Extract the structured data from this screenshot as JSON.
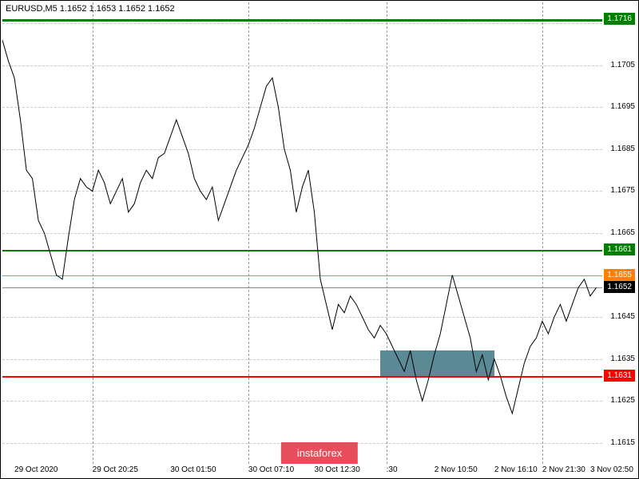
{
  "chart": {
    "symbol": "EURUSD",
    "timeframe": "M5",
    "ohlc": {
      "open": "1.1652",
      "high": "1.1653",
      "low": "1.1652",
      "close": "1.1652"
    },
    "title_fontsize": 11,
    "background_color": "#ffffff",
    "grid_color": "#cccccc",
    "grid_vertical_color": "#999999",
    "ylim": [
      1.161,
      1.172
    ],
    "yticks": [
      1.1615,
      1.1625,
      1.1635,
      1.1645,
      1.1655,
      1.1665,
      1.1675,
      1.1685,
      1.1695,
      1.1705,
      1.1715
    ],
    "xlim": [
      0,
      100
    ],
    "xticks": [
      {
        "pos": 2,
        "label": "29 Oct 2020"
      },
      {
        "pos": 15,
        "label": "29 Oct 20:25"
      },
      {
        "pos": 28,
        "label": "30 Oct 01:50"
      },
      {
        "pos": 41,
        "label": "30 Oct 07:10"
      },
      {
        "pos": 52,
        "label": "30 Oct 12:30"
      },
      {
        "pos": 64,
        "label": ":30"
      },
      {
        "pos": 72,
        "label": "2 Nov 10:50"
      },
      {
        "pos": 82,
        "label": "2 Nov 16:10"
      },
      {
        "pos": 90,
        "label": "2 Nov 21:30"
      },
      {
        "pos": 98,
        "label": "3 Nov 02:50"
      }
    ],
    "vertical_lines": [
      15,
      41,
      64,
      90
    ],
    "levels": [
      {
        "value": 1.1716,
        "color": "#008000",
        "width": 3,
        "label": "1.1716",
        "label_bg": "#008000"
      },
      {
        "value": 1.1661,
        "color": "#008000",
        "width": 2,
        "label": "1.1661",
        "label_bg": "#008000"
      },
      {
        "value": 1.1655,
        "color": "#ff8000",
        "width": 1,
        "label": "1.1655",
        "label_bg": "#ff8000"
      },
      {
        "value": 1.1631,
        "color": "#ff0000",
        "width": 2,
        "label": "1.1631",
        "label_bg": "#ff0000"
      }
    ],
    "current_price": {
      "value": 1.1652,
      "label": "1.1652",
      "line_color": "#888888",
      "label_bg": "#000000"
    },
    "highlight_box": {
      "x_start": 63,
      "x_end": 82,
      "y_start": 1.1631,
      "y_end": 1.1637,
      "color": "#5a8a95"
    },
    "watermark": {
      "text": "instaforex",
      "bg": "#e84d5b",
      "color": "#ffffff"
    },
    "price_data": [
      [
        0,
        1.1711
      ],
      [
        1,
        1.1706
      ],
      [
        2,
        1.1702
      ],
      [
        3,
        1.1692
      ],
      [
        4,
        1.168
      ],
      [
        5,
        1.1678
      ],
      [
        6,
        1.1668
      ],
      [
        7,
        1.1665
      ],
      [
        8,
        1.166
      ],
      [
        9,
        1.1655
      ],
      [
        10,
        1.1654
      ],
      [
        11,
        1.1664
      ],
      [
        12,
        1.1673
      ],
      [
        13,
        1.1678
      ],
      [
        14,
        1.1676
      ],
      [
        15,
        1.1675
      ],
      [
        16,
        1.168
      ],
      [
        17,
        1.1677
      ],
      [
        18,
        1.1672
      ],
      [
        19,
        1.1675
      ],
      [
        20,
        1.1678
      ],
      [
        21,
        1.167
      ],
      [
        22,
        1.1672
      ],
      [
        23,
        1.1677
      ],
      [
        24,
        1.168
      ],
      [
        25,
        1.1678
      ],
      [
        26,
        1.1683
      ],
      [
        27,
        1.1684
      ],
      [
        28,
        1.1688
      ],
      [
        29,
        1.1692
      ],
      [
        30,
        1.1688
      ],
      [
        31,
        1.1684
      ],
      [
        32,
        1.1678
      ],
      [
        33,
        1.1675
      ],
      [
        34,
        1.1673
      ],
      [
        35,
        1.1676
      ],
      [
        36,
        1.1668
      ],
      [
        37,
        1.1672
      ],
      [
        38,
        1.1676
      ],
      [
        39,
        1.168
      ],
      [
        40,
        1.1683
      ],
      [
        41,
        1.1686
      ],
      [
        42,
        1.169
      ],
      [
        43,
        1.1695
      ],
      [
        44,
        1.17
      ],
      [
        45,
        1.1702
      ],
      [
        46,
        1.1695
      ],
      [
        47,
        1.1685
      ],
      [
        48,
        1.168
      ],
      [
        49,
        1.167
      ],
      [
        50,
        1.1676
      ],
      [
        51,
        1.168
      ],
      [
        52,
        1.167
      ],
      [
        53,
        1.1654
      ],
      [
        54,
        1.1648
      ],
      [
        55,
        1.1642
      ],
      [
        56,
        1.1648
      ],
      [
        57,
        1.1646
      ],
      [
        58,
        1.165
      ],
      [
        59,
        1.1648
      ],
      [
        60,
        1.1645
      ],
      [
        61,
        1.1642
      ],
      [
        62,
        1.164
      ],
      [
        63,
        1.1643
      ],
      [
        64,
        1.1641
      ],
      [
        65,
        1.1638
      ],
      [
        66,
        1.1635
      ],
      [
        67,
        1.1632
      ],
      [
        68,
        1.1637
      ],
      [
        69,
        1.163
      ],
      [
        70,
        1.1625
      ],
      [
        71,
        1.163
      ],
      [
        72,
        1.1636
      ],
      [
        73,
        1.1641
      ],
      [
        74,
        1.1648
      ],
      [
        75,
        1.1655
      ],
      [
        76,
        1.165
      ],
      [
        77,
        1.1645
      ],
      [
        78,
        1.164
      ],
      [
        79,
        1.1632
      ],
      [
        80,
        1.1636
      ],
      [
        81,
        1.163
      ],
      [
        82,
        1.1635
      ],
      [
        83,
        1.1631
      ],
      [
        84,
        1.1626
      ],
      [
        85,
        1.1622
      ],
      [
        86,
        1.1628
      ],
      [
        87,
        1.1634
      ],
      [
        88,
        1.1638
      ],
      [
        89,
        1.164
      ],
      [
        90,
        1.1644
      ],
      [
        91,
        1.1641
      ],
      [
        92,
        1.1645
      ],
      [
        93,
        1.1648
      ],
      [
        94,
        1.1644
      ],
      [
        95,
        1.1648
      ],
      [
        96,
        1.1652
      ],
      [
        97,
        1.1654
      ],
      [
        98,
        1.165
      ],
      [
        99,
        1.1652
      ]
    ],
    "line_color": "#000000",
    "line_width": 1
  }
}
